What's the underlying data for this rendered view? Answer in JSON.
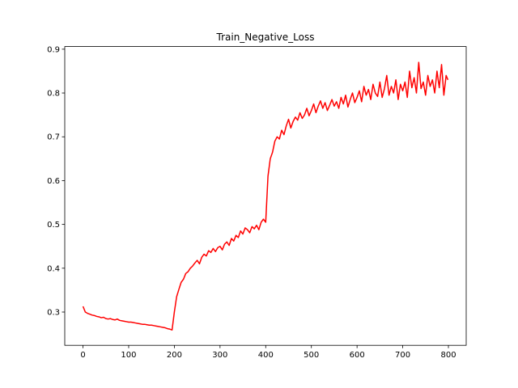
{
  "chart_data": {
    "type": "line",
    "title": "Train_Negative_Loss",
    "x": [
      0,
      5,
      10,
      15,
      20,
      25,
      30,
      35,
      40,
      45,
      50,
      55,
      60,
      65,
      70,
      75,
      80,
      85,
      90,
      95,
      100,
      105,
      110,
      115,
      120,
      125,
      130,
      135,
      140,
      145,
      150,
      155,
      160,
      165,
      170,
      175,
      180,
      185,
      190,
      195,
      200,
      205,
      210,
      215,
      220,
      225,
      230,
      235,
      240,
      245,
      250,
      255,
      260,
      265,
      270,
      275,
      280,
      285,
      290,
      295,
      300,
      305,
      310,
      315,
      320,
      325,
      330,
      335,
      340,
      345,
      350,
      355,
      360,
      365,
      370,
      375,
      380,
      385,
      390,
      395,
      400,
      405,
      410,
      415,
      420,
      425,
      430,
      435,
      440,
      445,
      450,
      455,
      460,
      465,
      470,
      475,
      480,
      485,
      490,
      495,
      500,
      505,
      510,
      515,
      520,
      525,
      530,
      535,
      540,
      545,
      550,
      555,
      560,
      565,
      570,
      575,
      580,
      585,
      590,
      595,
      600,
      605,
      610,
      615,
      620,
      625,
      630,
      635,
      640,
      645,
      650,
      655,
      660,
      665,
      670,
      675,
      680,
      685,
      690,
      695,
      700,
      705,
      710,
      715,
      720,
      725,
      730,
      735,
      740,
      745,
      750,
      755,
      760,
      765,
      770,
      775,
      780,
      785,
      790,
      795,
      799
    ],
    "series": [
      {
        "color": "#ff0000",
        "values": [
          0.313,
          0.3,
          0.297,
          0.295,
          0.293,
          0.292,
          0.29,
          0.289,
          0.287,
          0.288,
          0.285,
          0.284,
          0.285,
          0.283,
          0.282,
          0.284,
          0.281,
          0.28,
          0.279,
          0.278,
          0.277,
          0.277,
          0.276,
          0.275,
          0.274,
          0.273,
          0.272,
          0.272,
          0.271,
          0.27,
          0.27,
          0.269,
          0.268,
          0.267,
          0.266,
          0.265,
          0.264,
          0.262,
          0.261,
          0.259,
          0.3,
          0.335,
          0.352,
          0.368,
          0.375,
          0.388,
          0.392,
          0.4,
          0.405,
          0.412,
          0.418,
          0.41,
          0.425,
          0.432,
          0.428,
          0.44,
          0.436,
          0.445,
          0.438,
          0.447,
          0.45,
          0.442,
          0.455,
          0.46,
          0.452,
          0.468,
          0.462,
          0.475,
          0.47,
          0.485,
          0.478,
          0.492,
          0.488,
          0.481,
          0.495,
          0.49,
          0.498,
          0.488,
          0.505,
          0.512,
          0.505,
          0.61,
          0.65,
          0.665,
          0.69,
          0.7,
          0.695,
          0.715,
          0.705,
          0.725,
          0.74,
          0.72,
          0.735,
          0.745,
          0.738,
          0.755,
          0.742,
          0.75,
          0.765,
          0.748,
          0.76,
          0.775,
          0.755,
          0.77,
          0.782,
          0.765,
          0.778,
          0.76,
          0.772,
          0.785,
          0.77,
          0.78,
          0.765,
          0.79,
          0.775,
          0.795,
          0.768,
          0.785,
          0.8,
          0.778,
          0.79,
          0.805,
          0.78,
          0.815,
          0.795,
          0.808,
          0.785,
          0.82,
          0.8,
          0.792,
          0.825,
          0.79,
          0.81,
          0.84,
          0.795,
          0.815,
          0.8,
          0.83,
          0.785,
          0.82,
          0.805,
          0.825,
          0.79,
          0.85,
          0.812,
          0.835,
          0.8,
          0.87,
          0.81,
          0.825,
          0.795,
          0.84,
          0.815,
          0.83,
          0.8,
          0.85,
          0.812,
          0.865,
          0.795,
          0.84,
          0.83
        ]
      }
    ],
    "xlim": [
      -39.95,
      838.95
    ],
    "xticks": [
      0,
      100,
      200,
      300,
      400,
      500,
      600,
      700,
      800
    ],
    "ylim": [
      0.224,
      0.906
    ],
    "yticks": [
      0.3,
      0.4,
      0.5,
      0.6,
      0.7,
      0.8,
      0.9
    ]
  }
}
